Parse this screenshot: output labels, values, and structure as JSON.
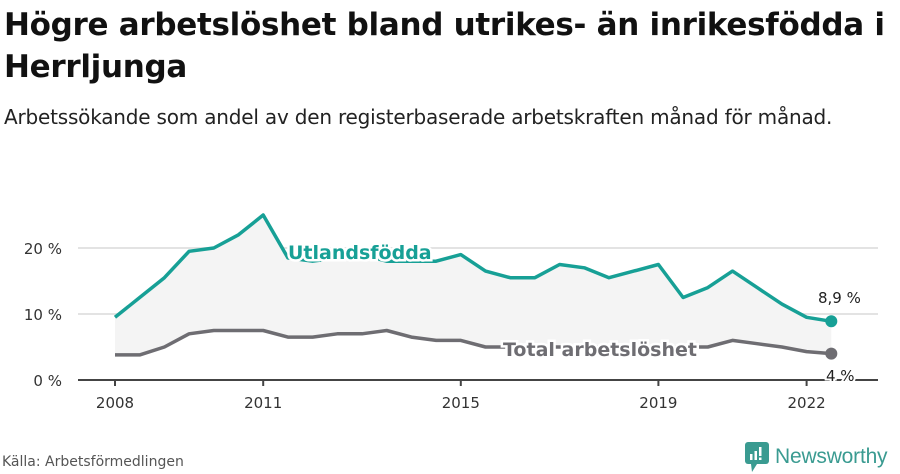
{
  "header": {
    "title": "Högre arbetslöshet bland utrikes- än inrikesfödda i Herrljunga",
    "subtitle": "Arbetssökande som andel av den registerbaserade arbetskraften månad för månad."
  },
  "footer": {
    "source": "Källa: Arbetsförmedlingen",
    "brand": "Newsworthy",
    "brand_icon": "bar-chart-speech-bubble-icon",
    "brand_color": "#3a9b91"
  },
  "chart_data": {
    "type": "line",
    "title": "Högre arbetslöshet bland utrikes- än inrikesfödda i Herrljunga",
    "subtitle": "Arbetssökande som andel av den registerbaserade arbetskraften månad för månad.",
    "xlabel": "",
    "ylabel": "",
    "ylim": [
      0,
      25
    ],
    "yticks": [
      0,
      10,
      20
    ],
    "ytick_labels": [
      "0 %",
      "10 %",
      "20 %"
    ],
    "xticks": [
      2008,
      2011,
      2015,
      2019,
      2022
    ],
    "xtick_labels": [
      "2008",
      "2011",
      "2015",
      "2019",
      "2022"
    ],
    "grid": "horizontal",
    "legend": "inline labels",
    "x": [
      2008.0,
      2008.5,
      2009.0,
      2009.5,
      2010.0,
      2010.5,
      2011.0,
      2011.5,
      2012.0,
      2012.5,
      2013.0,
      2013.5,
      2014.0,
      2014.5,
      2015.0,
      2015.5,
      2016.0,
      2016.5,
      2017.0,
      2017.5,
      2018.0,
      2018.5,
      2019.0,
      2019.5,
      2020.0,
      2020.5,
      2021.0,
      2021.5,
      2022.0,
      2022.5
    ],
    "series": [
      {
        "name": "Utlandsfödda",
        "color": "#17a096",
        "values": [
          9.5,
          12.5,
          15.5,
          19.5,
          20.0,
          22.0,
          25.0,
          18.5,
          18.0,
          18.5,
          19.0,
          18.0,
          18.0,
          18.0,
          19.0,
          16.5,
          15.5,
          15.5,
          17.5,
          17.0,
          15.5,
          16.5,
          17.5,
          12.5,
          14.0,
          16.5,
          14.0,
          11.5,
          9.5,
          8.9
        ],
        "end_label": "8,9 %"
      },
      {
        "name": "Total arbetslöshet",
        "color": "#6e6d72",
        "values": [
          3.8,
          3.8,
          5.0,
          7.0,
          7.5,
          7.5,
          7.5,
          6.5,
          6.5,
          7.0,
          7.0,
          7.5,
          6.5,
          6.0,
          6.0,
          5.0,
          5.0,
          5.0,
          5.0,
          5.0,
          5.0,
          5.0,
          5.0,
          5.0,
          5.0,
          6.0,
          5.5,
          5.0,
          4.3,
          4.0
        ],
        "end_label": "4 %"
      }
    ],
    "annotations": [
      "Utlandsfödda",
      "Total arbetslöshet",
      "8,9 %",
      "4 %"
    ]
  }
}
